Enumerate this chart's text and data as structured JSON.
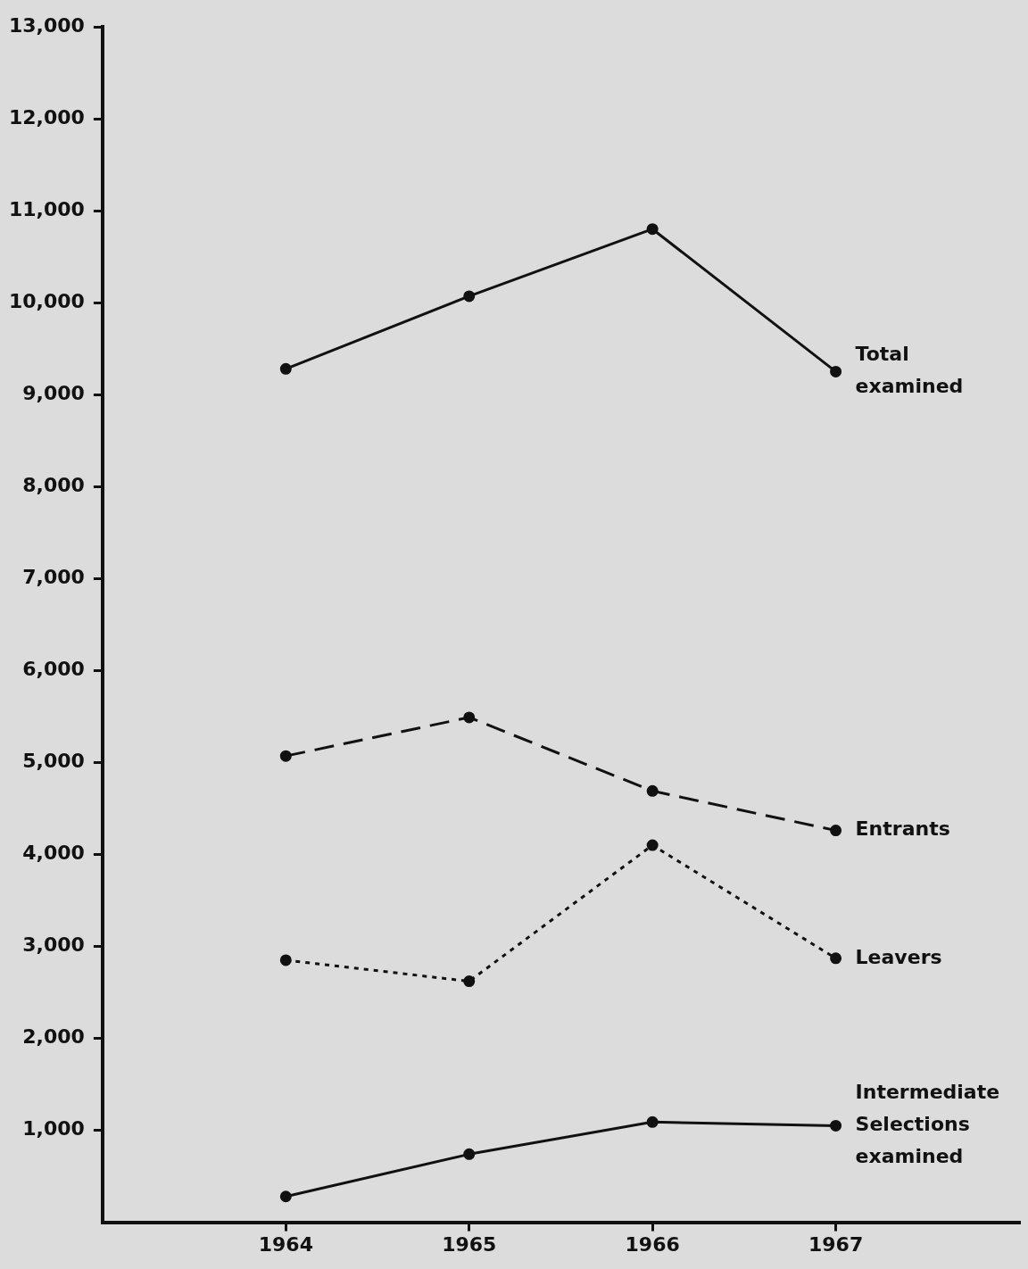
{
  "chart_data": {
    "type": "line",
    "x": [
      1964,
      1965,
      1966,
      1967
    ],
    "xlim": [
      1963,
      1968
    ],
    "xticks": [
      1964,
      1965,
      1966,
      1967
    ],
    "ylim": [
      0,
      13000
    ],
    "yticks": [
      {
        "value": 1000,
        "label": "1,000"
      },
      {
        "value": 2000,
        "label": "2,000"
      },
      {
        "value": 3000,
        "label": "3,000"
      },
      {
        "value": 4000,
        "label": "4,000"
      },
      {
        "value": 5000,
        "label": "5,000"
      },
      {
        "value": 6000,
        "label": "6,000"
      },
      {
        "value": 7000,
        "label": "7,000"
      },
      {
        "value": 8000,
        "label": "8,000"
      },
      {
        "value": 9000,
        "label": "9,000"
      },
      {
        "value": 10000,
        "label": "10,000"
      },
      {
        "value": 11000,
        "label": "11,000"
      },
      {
        "value": 12000,
        "label": "12,000"
      },
      {
        "value": 13000,
        "label": "13,000"
      }
    ],
    "grid": false,
    "legend": false,
    "marker": "circle",
    "series": [
      {
        "name": "Total examined",
        "color": "#111111",
        "line_style": "solid",
        "values": [
          9280,
          10070,
          10800,
          9250
        ]
      },
      {
        "name": "Entrants",
        "color": "#111111",
        "line_style": "dashed",
        "values": [
          5070,
          5490,
          4690,
          4260
        ]
      },
      {
        "name": "Leavers",
        "color": "#111111",
        "line_style": "dotted",
        "values": [
          2850,
          2620,
          4100,
          2870
        ]
      },
      {
        "name": "Intermediate Selections examined",
        "color": "#111111",
        "line_style": "solid",
        "values": [
          280,
          740,
          1090,
          1050
        ]
      }
    ]
  }
}
